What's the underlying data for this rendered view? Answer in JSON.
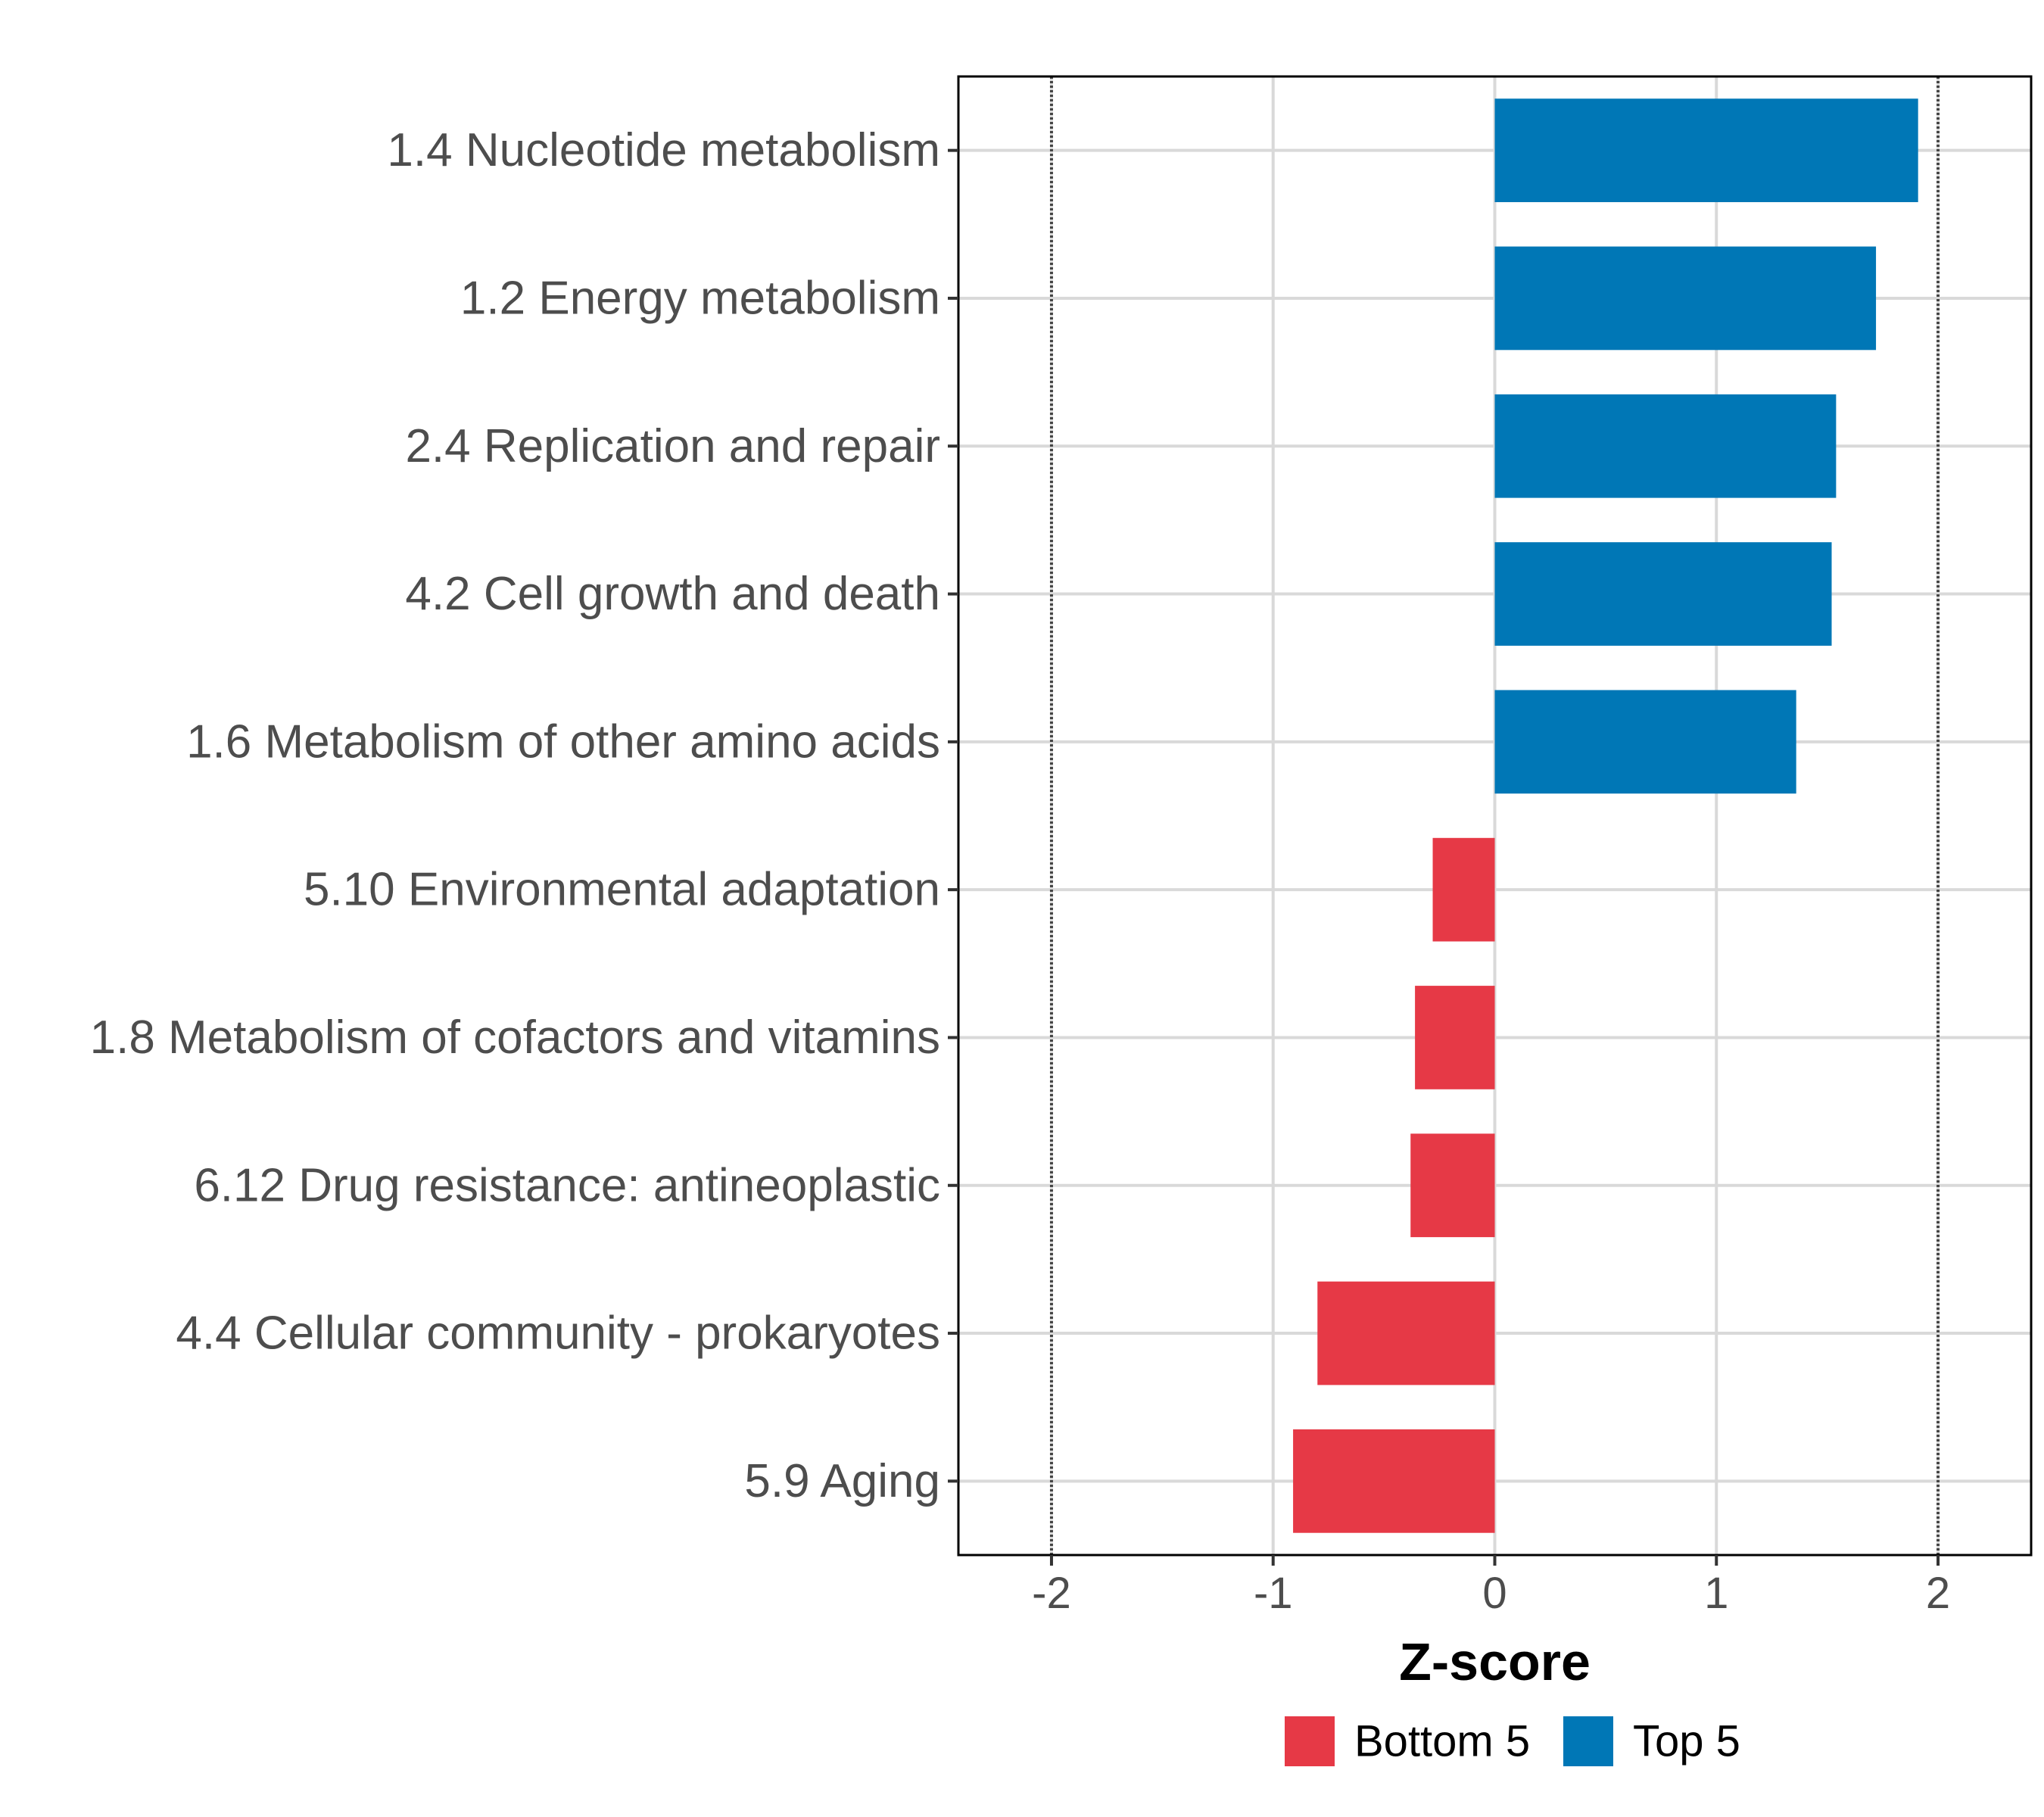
{
  "chart_data": {
    "type": "bar",
    "orientation": "horizontal",
    "categories": [
      "1.4 Nucleotide metabolism",
      "1.2 Energy metabolism",
      "2.4 Replication and repair",
      "4.2 Cell growth and death",
      "1.6 Metabolism of other amino acids",
      "5.10 Environmental adaptation",
      "1.8 Metabolism of cofactors and vitamins",
      "6.12 Drug resistance: antineoplastic",
      "4.4 Cellular community - prokaryotes",
      "5.9 Aging"
    ],
    "values": [
      1.91,
      1.72,
      1.54,
      1.52,
      1.36,
      -0.28,
      -0.36,
      -0.38,
      -0.8,
      -0.91
    ],
    "groups": [
      "Top 5",
      "Top 5",
      "Top 5",
      "Top 5",
      "Top 5",
      "Bottom 5",
      "Bottom 5",
      "Bottom 5",
      "Bottom 5",
      "Bottom 5"
    ],
    "xlabel": "Z-score",
    "xlim": [
      -2.42,
      2.42
    ],
    "xticks": [
      -2,
      -1,
      0,
      1,
      2
    ],
    "xtick_labels": [
      "-2",
      "-1",
      "0",
      "1",
      "2"
    ],
    "reference_lines": [
      -2,
      2
    ],
    "grid": true,
    "legend": {
      "position": "bottom",
      "items": [
        {
          "label": "Bottom 5",
          "color": "#E63946"
        },
        {
          "label": "Top 5",
          "color": "#0077B6"
        }
      ]
    }
  }
}
